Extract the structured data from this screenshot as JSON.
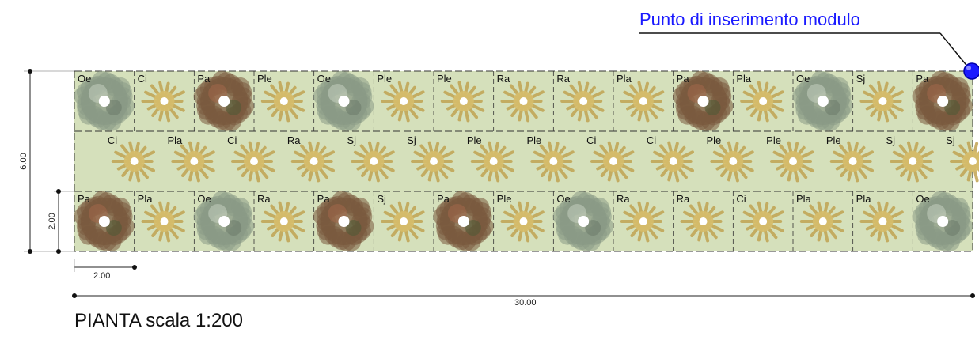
{
  "insertion_point_label": "Punto di inserimento modulo",
  "title": "PIANTA scala 1:200",
  "dimensions": {
    "total_length": "30.00",
    "total_width": "6.00",
    "module_width": "2.00",
    "module_length": "2.00"
  },
  "colors": {
    "bed": "#d5e0bb",
    "grid": "#333333",
    "insertion_point": "#1a1aff",
    "Oe": "#8a9a86",
    "Pa": "#7a5a3e",
    "shrub": "#c1a352"
  },
  "rows": [
    {
      "name": "row-top",
      "plants": [
        "Oe",
        "Ci",
        "Pa",
        "Ple",
        "Oe",
        "Ple",
        "Ple",
        "Ra",
        "Ra",
        "Pla",
        "Pa",
        "Pla",
        "Oe",
        "Sj",
        "Pa"
      ]
    },
    {
      "name": "row-middle",
      "plants": [
        "Ci",
        "Pla",
        "Ci",
        "Ra",
        "Sj",
        "Sj",
        "Ple",
        "Ple",
        "Ci",
        "Ci",
        "Ple",
        "Ple",
        "Ple",
        "Sj",
        "Sj"
      ]
    },
    {
      "name": "row-bottom",
      "plants": [
        "Pa",
        "Pla",
        "Oe",
        "Ra",
        "Pa",
        "Sj",
        "Pa",
        "Ple",
        "Oe",
        "Ra",
        "Ra",
        "Ci",
        "Pla",
        "Pla",
        "Oe"
      ]
    }
  ]
}
